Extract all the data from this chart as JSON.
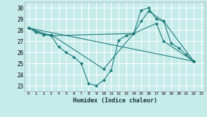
{
  "xlabel": "Humidex (Indice chaleur)",
  "xlim": [
    -0.5,
    23.5
  ],
  "ylim": [
    22.5,
    30.5
  ],
  "yticks": [
    23,
    24,
    25,
    26,
    27,
    28,
    29,
    30
  ],
  "xtick_labels": [
    "0",
    "1",
    "2",
    "3",
    "4",
    "5",
    "6",
    "7",
    "8",
    "9",
    "10",
    "11",
    "12",
    "13",
    "14",
    "15",
    "16",
    "17",
    "18",
    "19",
    "20",
    "21",
    "22",
    "23"
  ],
  "background_color": "#c6ecea",
  "grid_color": "#ffffff",
  "line_color": "#1e7b7b",
  "series": [
    {
      "x": [
        0,
        1,
        2,
        3,
        4,
        5,
        6,
        7,
        8,
        9,
        10,
        11,
        12,
        13,
        14,
        15,
        16,
        17,
        18,
        19,
        20,
        21,
        22
      ],
      "y": [
        28.2,
        27.8,
        27.6,
        27.5,
        26.5,
        26.0,
        25.6,
        25.0,
        23.2,
        23.0,
        23.5,
        24.4,
        27.1,
        27.5,
        27.7,
        29.8,
        30.0,
        29.0,
        28.8,
        26.8,
        26.4,
        25.8,
        25.2
      ]
    },
    {
      "x": [
        0,
        2,
        3,
        10,
        14,
        15,
        16,
        18,
        22
      ],
      "y": [
        28.2,
        27.6,
        27.6,
        24.5,
        27.7,
        28.8,
        29.7,
        28.8,
        25.2
      ]
    },
    {
      "x": [
        0,
        3,
        14,
        17,
        18,
        22
      ],
      "y": [
        28.2,
        27.5,
        27.7,
        28.6,
        27.0,
        25.2
      ]
    },
    {
      "x": [
        0,
        22
      ],
      "y": [
        28.2,
        25.2
      ]
    }
  ]
}
